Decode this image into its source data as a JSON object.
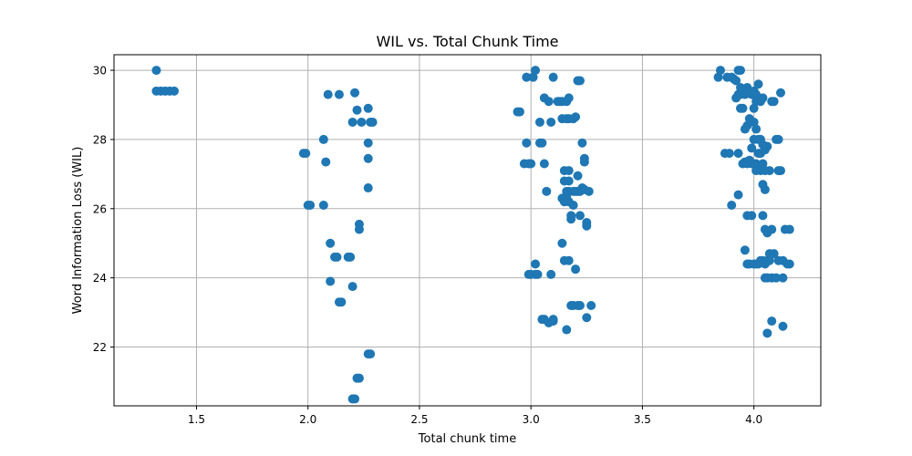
{
  "chart_data": {
    "type": "scatter",
    "title": "WIL vs. Total Chunk Time",
    "xlabel": "Total chunk time",
    "ylabel": "Word Information Loss (WIL)",
    "xlim": [
      1.13,
      4.3
    ],
    "ylim": [
      20.3,
      30.45
    ],
    "xticks": [
      1.5,
      2.0,
      2.5,
      3.0,
      3.5,
      4.0
    ],
    "xtick_labels": [
      "1.5",
      "2.0",
      "2.5",
      "3.0",
      "3.5",
      "4.0"
    ],
    "yticks": [
      22,
      24,
      26,
      28,
      30
    ],
    "ytick_labels": [
      "22",
      "24",
      "26",
      "28",
      "30"
    ],
    "grid": true,
    "marker_color": "#1f77b4",
    "series": [
      {
        "points": [
          [
            1.32,
            30.0
          ],
          [
            1.32,
            29.4
          ],
          [
            1.34,
            29.4
          ],
          [
            1.36,
            29.4
          ],
          [
            1.38,
            29.4
          ],
          [
            1.4,
            29.4
          ],
          [
            1.98,
            27.6
          ],
          [
            1.99,
            27.6
          ],
          [
            2.0,
            26.1
          ],
          [
            2.01,
            26.1
          ],
          [
            2.07,
            26.1
          ],
          [
            2.07,
            28.0
          ],
          [
            2.08,
            27.35
          ],
          [
            2.09,
            29.3
          ],
          [
            2.1,
            25.0
          ],
          [
            2.1,
            23.9
          ],
          [
            2.12,
            24.6
          ],
          [
            2.13,
            24.6
          ],
          [
            2.14,
            29.3
          ],
          [
            2.14,
            23.3
          ],
          [
            2.15,
            23.3
          ],
          [
            2.18,
            24.6
          ],
          [
            2.19,
            24.6
          ],
          [
            2.2,
            28.5
          ],
          [
            2.2,
            23.75
          ],
          [
            2.21,
            29.35
          ],
          [
            2.21,
            20.5
          ],
          [
            2.2,
            20.5
          ],
          [
            2.22,
            28.85
          ],
          [
            2.22,
            21.1
          ],
          [
            2.23,
            21.1
          ],
          [
            2.23,
            25.4
          ],
          [
            2.23,
            25.55
          ],
          [
            2.24,
            28.5
          ],
          [
            2.27,
            28.9
          ],
          [
            2.27,
            27.9
          ],
          [
            2.27,
            27.45
          ],
          [
            2.27,
            26.6
          ],
          [
            2.27,
            21.8
          ],
          [
            2.28,
            21.8
          ],
          [
            2.28,
            28.5
          ],
          [
            2.29,
            28.5
          ],
          [
            2.94,
            28.8
          ],
          [
            2.95,
            28.8
          ],
          [
            2.97,
            27.3
          ],
          [
            2.98,
            29.8
          ],
          [
            2.98,
            27.9
          ],
          [
            2.99,
            27.3
          ],
          [
            3.0,
            27.3
          ],
          [
            2.99,
            24.1
          ],
          [
            3.0,
            24.1
          ],
          [
            3.01,
            29.8
          ],
          [
            3.02,
            30.0
          ],
          [
            3.02,
            24.4
          ],
          [
            3.02,
            24.1
          ],
          [
            3.03,
            24.1
          ],
          [
            3.04,
            27.9
          ],
          [
            3.04,
            28.5
          ],
          [
            3.05,
            27.9
          ],
          [
            3.05,
            22.8
          ],
          [
            3.06,
            22.8
          ],
          [
            3.06,
            27.3
          ],
          [
            3.06,
            29.2
          ],
          [
            3.07,
            26.5
          ],
          [
            3.08,
            29.1
          ],
          [
            3.08,
            22.7
          ],
          [
            3.09,
            28.5
          ],
          [
            3.09,
            24.1
          ],
          [
            3.1,
            29.8
          ],
          [
            3.1,
            22.8
          ],
          [
            3.1,
            22.75
          ],
          [
            3.12,
            29.1
          ],
          [
            3.13,
            29.1
          ],
          [
            3.14,
            25.0
          ],
          [
            3.14,
            29.1
          ],
          [
            3.14,
            28.6
          ],
          [
            3.14,
            26.3
          ],
          [
            3.15,
            26.8
          ],
          [
            3.15,
            27.1
          ],
          [
            3.15,
            24.5
          ],
          [
            3.15,
            26.2
          ],
          [
            3.16,
            28.6
          ],
          [
            3.16,
            29.1
          ],
          [
            3.16,
            26.5
          ],
          [
            3.16,
            26.35
          ],
          [
            3.16,
            22.5
          ],
          [
            3.17,
            29.2
          ],
          [
            3.17,
            28.6
          ],
          [
            3.17,
            27.1
          ],
          [
            3.17,
            26.8
          ],
          [
            3.17,
            26.5
          ],
          [
            3.17,
            26.2
          ],
          [
            3.17,
            24.5
          ],
          [
            3.18,
            25.8
          ],
          [
            3.18,
            25.7
          ],
          [
            3.18,
            23.2
          ],
          [
            3.19,
            28.6
          ],
          [
            3.19,
            26.5
          ],
          [
            3.19,
            26.1
          ],
          [
            3.19,
            23.2
          ],
          [
            3.2,
            28.65
          ],
          [
            3.2,
            26.5
          ],
          [
            3.2,
            24.25
          ],
          [
            3.21,
            29.7
          ],
          [
            3.21,
            26.95
          ],
          [
            3.21,
            26.5
          ],
          [
            3.21,
            23.2
          ],
          [
            3.22,
            29.7
          ],
          [
            3.22,
            26.5
          ],
          [
            3.22,
            25.8
          ],
          [
            3.22,
            23.2
          ],
          [
            3.23,
            27.9
          ],
          [
            3.23,
            26.6
          ],
          [
            3.24,
            27.45
          ],
          [
            3.24,
            27.35
          ],
          [
            3.24,
            26.55
          ],
          [
            3.25,
            25.6
          ],
          [
            3.25,
            25.5
          ],
          [
            3.25,
            22.85
          ],
          [
            3.26,
            26.5
          ],
          [
            3.27,
            23.2
          ],
          [
            3.84,
            29.8
          ],
          [
            3.85,
            30.0
          ],
          [
            3.87,
            27.6
          ],
          [
            3.88,
            29.8
          ],
          [
            3.89,
            27.6
          ],
          [
            3.9,
            29.8
          ],
          [
            3.9,
            26.1
          ],
          [
            3.91,
            29.75
          ],
          [
            3.92,
            29.7
          ],
          [
            3.92,
            29.2
          ],
          [
            3.93,
            30.0
          ],
          [
            3.93,
            29.3
          ],
          [
            3.93,
            27.6
          ],
          [
            3.93,
            26.4
          ],
          [
            3.94,
            30.0
          ],
          [
            3.94,
            29.5
          ],
          [
            3.94,
            29.3
          ],
          [
            3.94,
            28.9
          ],
          [
            3.95,
            29.4
          ],
          [
            3.95,
            28.9
          ],
          [
            3.95,
            27.3
          ],
          [
            3.96,
            29.3
          ],
          [
            3.96,
            28.3
          ],
          [
            3.96,
            27.35
          ],
          [
            3.96,
            24.8
          ],
          [
            3.97,
            29.5
          ],
          [
            3.97,
            28.4
          ],
          [
            3.97,
            27.3
          ],
          [
            3.97,
            25.8
          ],
          [
            3.97,
            24.4
          ],
          [
            3.98,
            29.4
          ],
          [
            3.98,
            28.6
          ],
          [
            3.98,
            27.4
          ],
          [
            3.98,
            24.4
          ],
          [
            3.99,
            29.3
          ],
          [
            3.99,
            27.75
          ],
          [
            3.99,
            27.3
          ],
          [
            3.99,
            25.8
          ],
          [
            4.0,
            29.4
          ],
          [
            4.0,
            28.9
          ],
          [
            4.0,
            28.0
          ],
          [
            4.0,
            28.5
          ],
          [
            4.0,
            27.3
          ],
          [
            4.0,
            24.4
          ],
          [
            4.01,
            29.3
          ],
          [
            4.01,
            29.1
          ],
          [
            4.01,
            28.3
          ],
          [
            4.01,
            27.3
          ],
          [
            4.01,
            27.1
          ],
          [
            4.01,
            24.4
          ],
          [
            4.02,
            29.6
          ],
          [
            4.02,
            28.0
          ],
          [
            4.02,
            27.6
          ],
          [
            4.02,
            27.25
          ],
          [
            4.02,
            24.4
          ],
          [
            4.03,
            29.1
          ],
          [
            4.03,
            28.0
          ],
          [
            4.03,
            27.6
          ],
          [
            4.03,
            27.1
          ],
          [
            4.03,
            24.5
          ],
          [
            4.04,
            29.2
          ],
          [
            4.04,
            27.85
          ],
          [
            4.04,
            27.3
          ],
          [
            4.04,
            26.7
          ],
          [
            4.04,
            25.8
          ],
          [
            4.04,
            24.5
          ],
          [
            4.05,
            27.7
          ],
          [
            4.05,
            27.1
          ],
          [
            4.05,
            26.55
          ],
          [
            4.05,
            25.4
          ],
          [
            4.05,
            24.0
          ],
          [
            4.05,
            24.4
          ],
          [
            4.06,
            27.8
          ],
          [
            4.06,
            25.3
          ],
          [
            4.06,
            24.5
          ],
          [
            4.06,
            24.0
          ],
          [
            4.06,
            22.4
          ],
          [
            4.07,
            27.1
          ],
          [
            4.07,
            24.7
          ],
          [
            4.07,
            24.5
          ],
          [
            4.08,
            29.1
          ],
          [
            4.08,
            25.4
          ],
          [
            4.08,
            24.0
          ],
          [
            4.08,
            22.75
          ],
          [
            4.09,
            29.1
          ],
          [
            4.09,
            24.7
          ],
          [
            4.1,
            28.0
          ],
          [
            4.1,
            24.0
          ],
          [
            4.11,
            28.0
          ],
          [
            4.11,
            27.1
          ],
          [
            4.11,
            24.5
          ],
          [
            4.12,
            29.35
          ],
          [
            4.12,
            27.1
          ],
          [
            4.13,
            24.5
          ],
          [
            4.13,
            24.0
          ],
          [
            4.13,
            22.6
          ],
          [
            4.14,
            25.4
          ],
          [
            4.15,
            24.4
          ],
          [
            4.16,
            25.4
          ],
          [
            4.16,
            24.4
          ]
        ]
      }
    ]
  }
}
